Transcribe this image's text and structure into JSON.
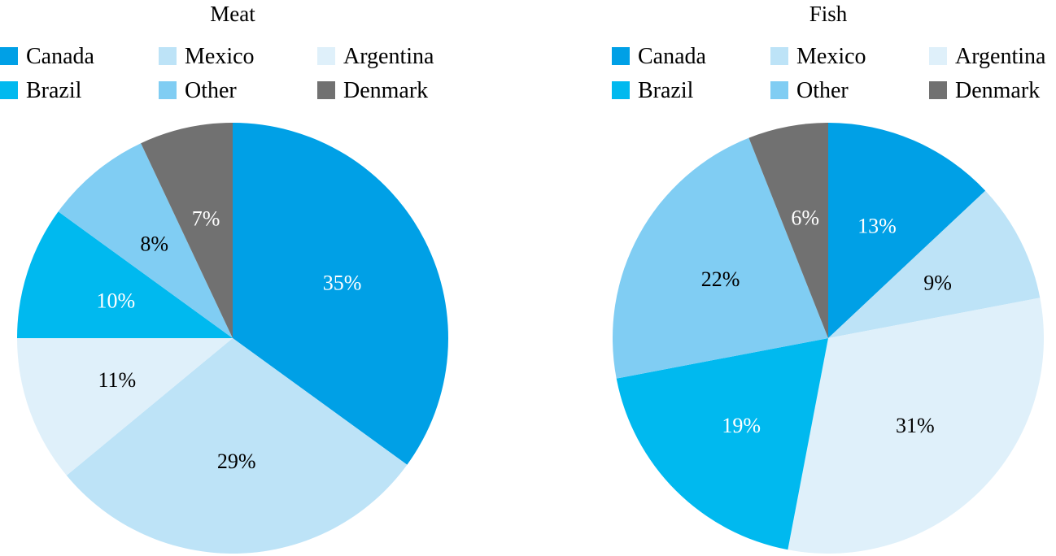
{
  "chart_data": [
    {
      "type": "pie",
      "title": "Meat",
      "categories": [
        "Canada",
        "Mexico",
        "Argentina",
        "Brazil",
        "Other",
        "Denmark"
      ],
      "values": [
        35,
        29,
        11,
        10,
        8,
        7
      ],
      "labels": [
        "35%",
        "29%",
        "11%",
        "10%",
        "8%",
        "7%"
      ],
      "legend": "top"
    },
    {
      "type": "pie",
      "title": "Fish",
      "categories": [
        "Canada",
        "Mexico",
        "Argentina",
        "Brazil",
        "Other",
        "Denmark"
      ],
      "values": [
        13,
        9,
        31,
        19,
        22,
        6
      ],
      "labels": [
        "13%",
        "9%",
        "31%",
        "19%",
        "22%",
        "6%"
      ],
      "legend": "top"
    }
  ],
  "colors": {
    "Canada": "#00a0e6",
    "Mexico": "#bde3f7",
    "Argentina": "#dff0fa",
    "Brazil": "#00b9ef",
    "Other": "#80cdf3",
    "Denmark": "#717171"
  },
  "label_colors": {
    "Canada": "#ffffff",
    "Mexico": "#000000",
    "Argentina": "#000000",
    "Brazil": "#ffffff",
    "Other": "#000000",
    "Denmark": "#ffffff"
  }
}
